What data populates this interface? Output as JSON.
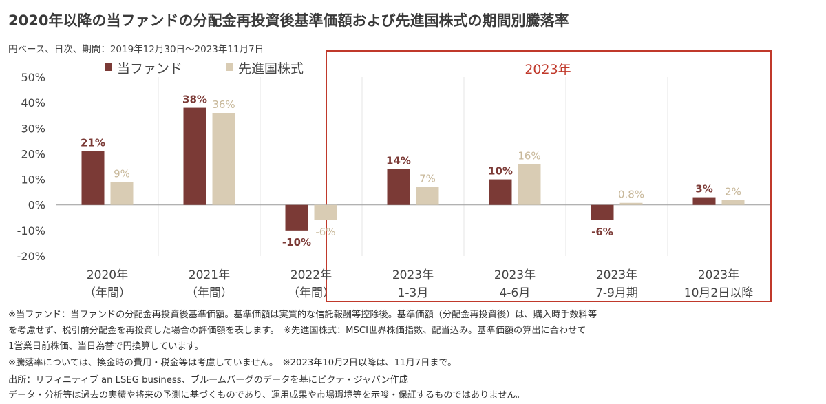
{
  "title": "2020年以降の当ファンドの分配金再投資後基準価額および先進国株式の期間別騰落率",
  "subtitle": "円ベース、日次、期間：2019年12月30日～2023年11月7日",
  "colors": {
    "fund": "#7b3a36",
    "index": "#d9ccb4",
    "highlight_box": "#c0392b",
    "fund_label": "#7b3a36",
    "index_label": "#c8b89a"
  },
  "chart_data": {
    "type": "bar",
    "categories": [
      [
        "2020年",
        "（年間）"
      ],
      [
        "2021年",
        "（年間）"
      ],
      [
        "2022年",
        "（年間）"
      ],
      [
        "2023年",
        "1-3月"
      ],
      [
        "2023年",
        "4-6月"
      ],
      [
        "2023年",
        "7-9月期"
      ],
      [
        "2023年",
        "10月2日以降"
      ]
    ],
    "series": [
      {
        "name": "当ファンド",
        "values": [
          21,
          38,
          -10,
          14,
          10,
          -6,
          3
        ],
        "labels": [
          "21%",
          "38%",
          "-10%",
          "14%",
          "10%",
          "-6%",
          "3%"
        ]
      },
      {
        "name": "先進国株式",
        "values": [
          9,
          36,
          -6,
          7,
          16,
          0.8,
          2
        ],
        "labels": [
          "9%",
          "36%",
          "-6%",
          "7%",
          "16%",
          "0.8%",
          "2%"
        ]
      }
    ],
    "ylim": [
      -20,
      50
    ],
    "yticks": [
      50,
      40,
      30,
      20,
      10,
      0,
      -10,
      -20
    ],
    "ytick_labels": [
      "50%",
      "40%",
      "30%",
      "20%",
      "10%",
      "0%",
      "-10%",
      "-20%"
    ],
    "highlight_label": "2023年",
    "grid": "vertical separators",
    "legend_position": "top-left"
  },
  "notes": [
    "※当ファンド：当ファンドの分配金再投資後基準価額。基準価額は実質的な信託報酬等控除後。基準価額（分配金再投資後）は、購入時手数料等",
    "を考慮せず、税引前分配金を再投資した場合の評価額を表します。　※先進国株式：MSCI世界株価指数、配当込み。基準価額の算出に合わせて",
    "1営業日前株価、当日為替で円換算しています。",
    "※騰落率については、換金時の費用・税金等は考慮していません。　※2023年10月2日以降は、11月7日まで。",
    "出所：リフィニティブ an LSEG business、ブルームバーグのデータを基にピクテ・ジャパン作成",
    "データ・分析等は過去の実績や将来の予測に基づくものであり、運用成果や市場環境等を示唆・保証するものではありません。"
  ]
}
